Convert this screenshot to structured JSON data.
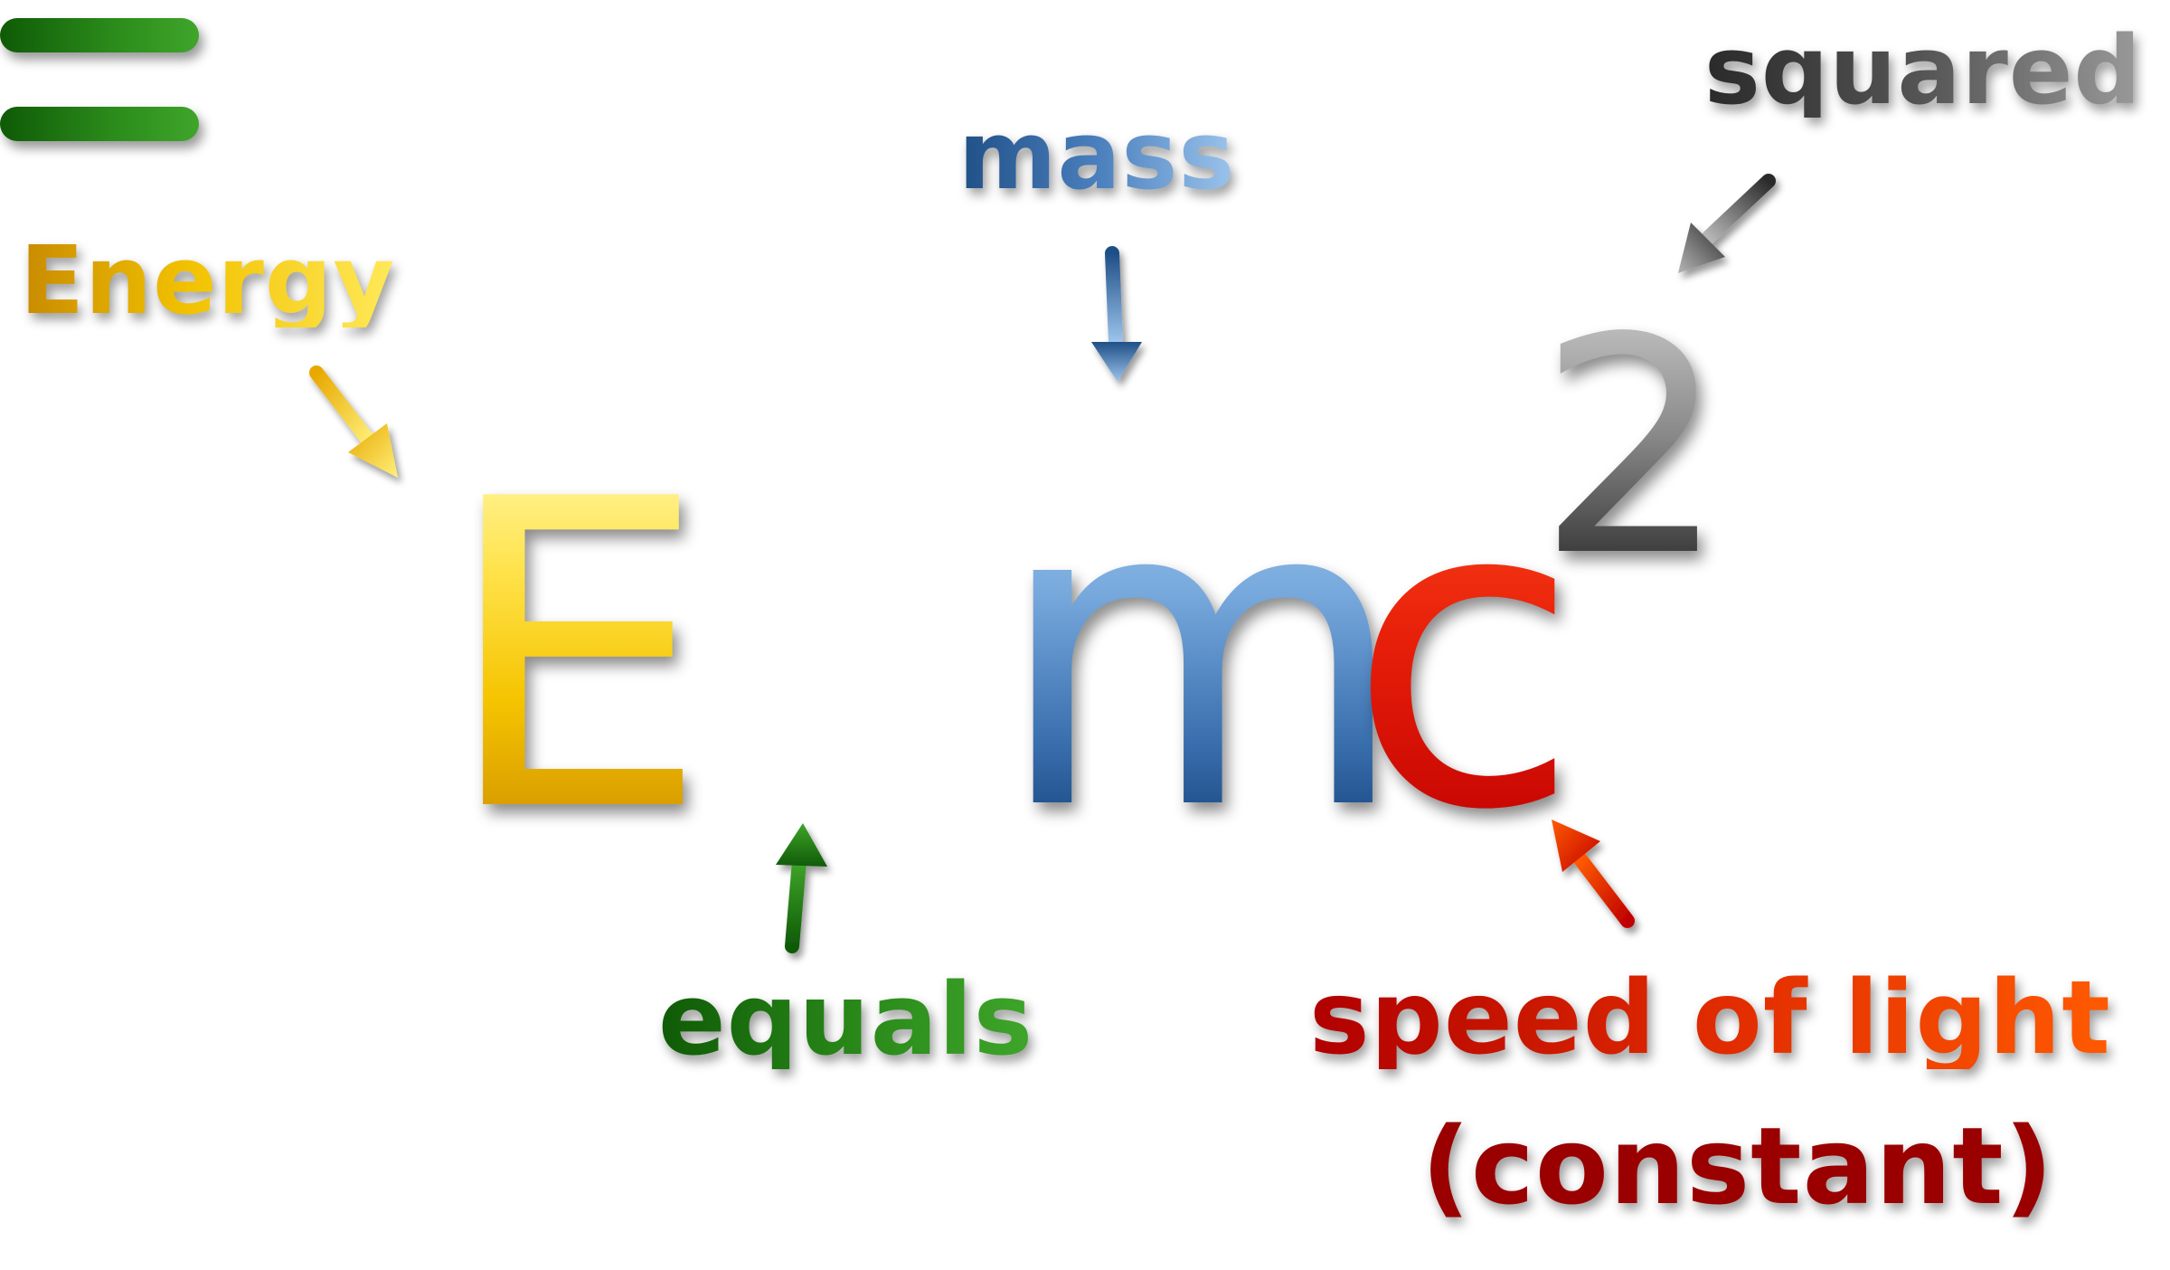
{
  "equation": {
    "energy_symbol": "E",
    "equals_symbol": "=",
    "mass_symbol": "m",
    "light_symbol": "c",
    "exponent": "2"
  },
  "labels": {
    "energy": "Energy",
    "mass": "mass",
    "squared": "squared",
    "equals": "equals",
    "speed_of_light": "speed of light",
    "constant": "(constant)"
  },
  "colors": {
    "energy": "#f2c200",
    "equals": "#2a8a1a",
    "mass": "#4a7fbd",
    "speed_of_light": "#e02a00",
    "constant": "#9a0000",
    "squared": "#555555"
  },
  "arrows": [
    {
      "from": "energy",
      "to": "E",
      "icon": "arrow-down-right-icon"
    },
    {
      "from": "mass",
      "to": "m",
      "icon": "arrow-down-icon"
    },
    {
      "from": "squared",
      "to": "exponent",
      "icon": "arrow-down-left-icon"
    },
    {
      "from": "equals",
      "to": "=",
      "icon": "arrow-up-icon"
    },
    {
      "from": "speed_of_light",
      "to": "c",
      "icon": "arrow-up-left-icon"
    }
  ]
}
